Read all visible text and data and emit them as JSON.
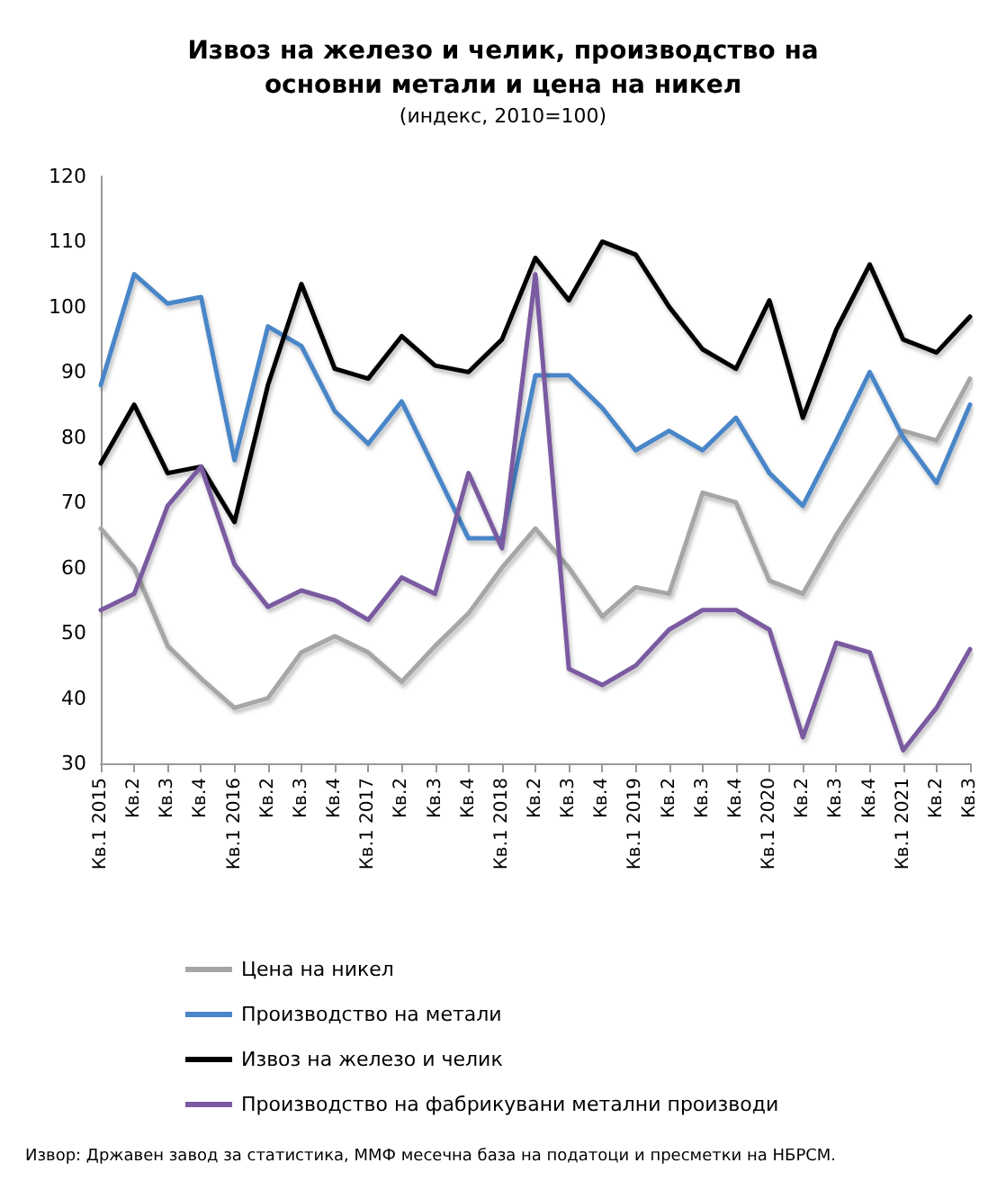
{
  "chart_data": {
    "type": "line",
    "title": "Извоз на железо и челик, производство на\nосновни метали и цена на никел",
    "subtitle": "(индекс, 2010=100)",
    "categories": [
      "Кв.1 2015",
      "Кв.2",
      "Кв.3",
      "Кв.4",
      "Кв.1 2016",
      "Кв.2",
      "Кв.3",
      "Кв.4",
      "Кв.1 2017",
      "Кв.2",
      "Кв.3",
      "Кв.4",
      "Кв.1 2018",
      "Кв.2",
      "Кв.3",
      "Кв.4",
      "Кв.1 2019",
      "Кв.2",
      "Кв.3",
      "Кв.4",
      "Кв.1 2020",
      "Кв.2",
      "Кв.3",
      "Кв.4",
      "Кв.1 2021",
      "Кв.2",
      "Кв.3"
    ],
    "series": [
      {
        "name": "Цена на никел",
        "color": "#a6a6a6",
        "values": [
          66,
          60,
          48,
          43,
          38.5,
          40,
          47,
          49.5,
          47,
          42.5,
          48,
          53,
          60,
          66,
          60,
          52.5,
          57,
          56,
          71.5,
          70,
          58,
          56,
          65,
          73,
          81,
          79.5,
          89
        ]
      },
      {
        "name": "Производство на метали",
        "color": "#4a86c8",
        "values": [
          88,
          105,
          100.5,
          101.5,
          76.5,
          97,
          94,
          84,
          79,
          85.5,
          75,
          64.5,
          64.5,
          89.5,
          89.5,
          84.5,
          78,
          81,
          78,
          83,
          74.5,
          69.5,
          79.5,
          90,
          80,
          73,
          85
        ]
      },
      {
        "name": "Извоз на железо и челик",
        "color": "#000000",
        "values": [
          76,
          85,
          74.5,
          75.5,
          67,
          88,
          103.5,
          90.5,
          89,
          95.5,
          91,
          90,
          95,
          107.5,
          101,
          110,
          108,
          100,
          93.5,
          90.5,
          101,
          83,
          96.5,
          106.5,
          95,
          93,
          98.5
        ]
      },
      {
        "name": "Производство на фабрикувани метални производи",
        "color": "#7a5aa0",
        "values": [
          53.5,
          56,
          69.5,
          75.5,
          60.5,
          54,
          56.5,
          55,
          52,
          58.5,
          56,
          74.5,
          63,
          105,
          44.5,
          42,
          45,
          50.5,
          53.5,
          53.5,
          50.5,
          34,
          48.5,
          47,
          32,
          38.5,
          47.5
        ]
      }
    ],
    "ylim": [
      30,
      120
    ],
    "yticks": [
      30,
      40,
      50,
      60,
      70,
      80,
      90,
      100,
      110,
      120
    ],
    "grid": false,
    "legend": "bottom",
    "marker": "none",
    "line_style": "solid",
    "annotations": [
      "Извор: Државен завод за статистика, ММФ месечна база на податоци и пресметки на НБРСМ."
    ]
  }
}
